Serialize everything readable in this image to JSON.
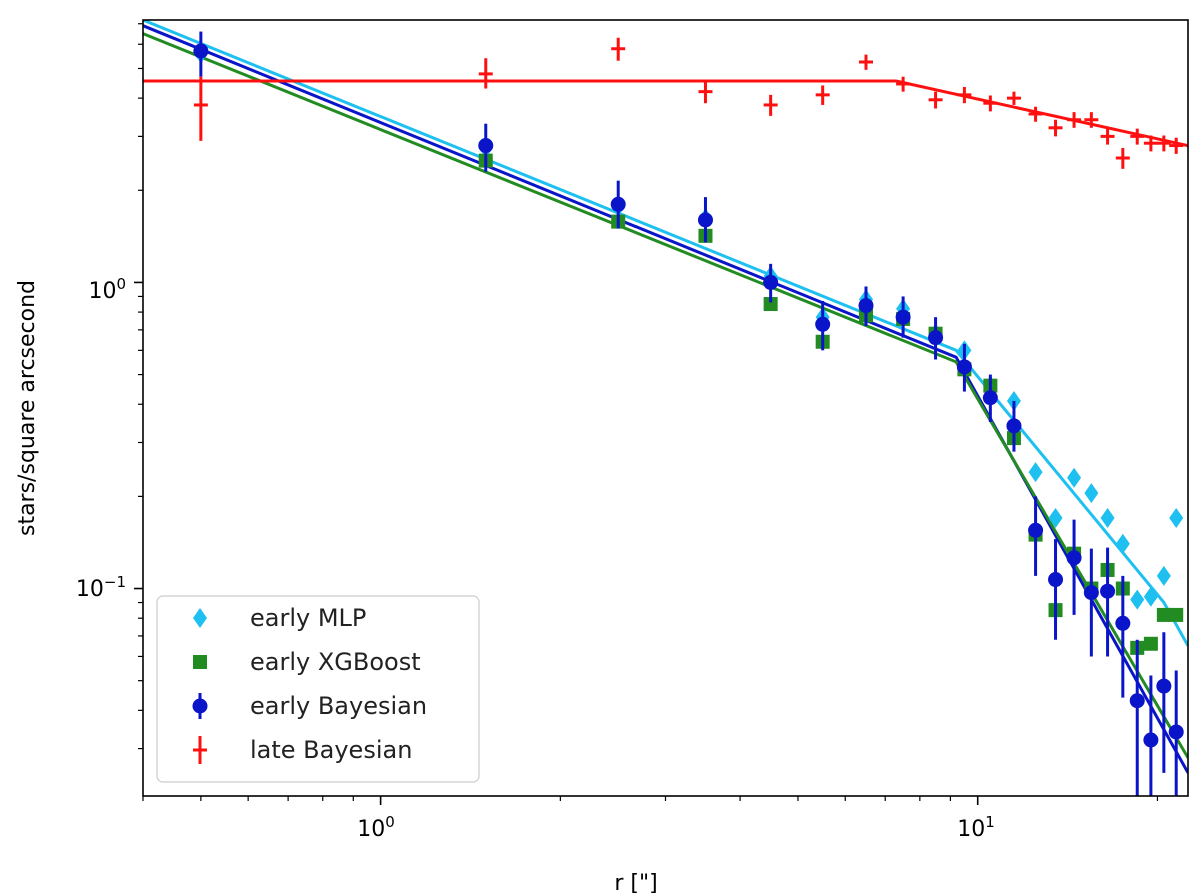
{
  "chart_data": {
    "type": "scatter",
    "xscale": "log",
    "yscale": "log",
    "xlim": [
      0.4,
      22.5
    ],
    "ylim": [
      0.021,
      7.2
    ],
    "xlabel": "r [\"]",
    "ylabel": "stars/square arcsecond",
    "xticks": [
      {
        "value": 1,
        "base": "10",
        "exp": "0"
      },
      {
        "value": 10,
        "base": "10",
        "exp": "1"
      }
    ],
    "yticks": [
      {
        "value": 1,
        "base": "10",
        "exp": "0"
      },
      {
        "value": 0.1,
        "base": "10",
        "exp": "−1"
      }
    ],
    "grid": false,
    "legend_position": "lower-left",
    "series": [
      {
        "name": "early MLP",
        "color": "#1ec0f0",
        "marker": "diamond",
        "points": [
          {
            "x": 0.5,
            "y": 5.6
          },
          {
            "x": 1.5,
            "y": 2.75
          },
          {
            "x": 2.5,
            "y": 1.77
          },
          {
            "x": 3.5,
            "y": 1.62
          },
          {
            "x": 4.5,
            "y": 1.05
          },
          {
            "x": 5.5,
            "y": 0.77
          },
          {
            "x": 6.5,
            "y": 0.88
          },
          {
            "x": 7.5,
            "y": 0.82
          },
          {
            "x": 8.5,
            "y": 0.68
          },
          {
            "x": 9.5,
            "y": 0.6
          },
          {
            "x": 10.5,
            "y": 0.46
          },
          {
            "x": 11.5,
            "y": 0.41
          },
          {
            "x": 12.5,
            "y": 0.24
          },
          {
            "x": 13.5,
            "y": 0.17
          },
          {
            "x": 14.5,
            "y": 0.23
          },
          {
            "x": 15.5,
            "y": 0.205
          },
          {
            "x": 16.5,
            "y": 0.17
          },
          {
            "x": 17.5,
            "y": 0.14
          },
          {
            "x": 18.5,
            "y": 0.092
          },
          {
            "x": 19.5,
            "y": 0.094
          },
          {
            "x": 20.5,
            "y": 0.11
          },
          {
            "x": 21.5,
            "y": 0.17
          }
        ]
      },
      {
        "name": "early XGBoost",
        "color": "#228b22",
        "marker": "square",
        "points": [
          {
            "x": 1.5,
            "y": 2.5
          },
          {
            "x": 2.5,
            "y": 1.58
          },
          {
            "x": 3.5,
            "y": 1.42
          },
          {
            "x": 4.5,
            "y": 0.85
          },
          {
            "x": 5.5,
            "y": 0.64
          },
          {
            "x": 6.5,
            "y": 0.78
          },
          {
            "x": 7.5,
            "y": 0.76
          },
          {
            "x": 8.5,
            "y": 0.68
          },
          {
            "x": 9.5,
            "y": 0.52
          },
          {
            "x": 10.5,
            "y": 0.46
          },
          {
            "x": 11.5,
            "y": 0.31
          },
          {
            "x": 12.5,
            "y": 0.15
          },
          {
            "x": 13.5,
            "y": 0.085
          },
          {
            "x": 14.5,
            "y": 0.13
          },
          {
            "x": 15.5,
            "y": 0.1
          },
          {
            "x": 16.5,
            "y": 0.115
          },
          {
            "x": 17.5,
            "y": 0.1
          },
          {
            "x": 18.5,
            "y": 0.064
          },
          {
            "x": 19.5,
            "y": 0.066
          },
          {
            "x": 20.5,
            "y": 0.082
          },
          {
            "x": 21.5,
            "y": 0.082
          }
        ]
      },
      {
        "name": "early Bayesian",
        "color": "#0a14c8",
        "marker": "circle",
        "errorbars": true,
        "points": [
          {
            "x": 0.5,
            "y": 5.7,
            "lo": 4.7,
            "hi": 6.6
          },
          {
            "x": 1.5,
            "y": 2.8,
            "lo": 2.3,
            "hi": 3.3
          },
          {
            "x": 2.5,
            "y": 1.8,
            "lo": 1.5,
            "hi": 2.15
          },
          {
            "x": 3.5,
            "y": 1.6,
            "lo": 1.35,
            "hi": 1.9
          },
          {
            "x": 4.5,
            "y": 1.0,
            "lo": 0.86,
            "hi": 1.15
          },
          {
            "x": 5.5,
            "y": 0.73,
            "lo": 0.6,
            "hi": 0.87
          },
          {
            "x": 6.5,
            "y": 0.84,
            "lo": 0.72,
            "hi": 0.97
          },
          {
            "x": 7.5,
            "y": 0.77,
            "lo": 0.66,
            "hi": 0.9
          },
          {
            "x": 8.5,
            "y": 0.66,
            "lo": 0.56,
            "hi": 0.77
          },
          {
            "x": 9.5,
            "y": 0.53,
            "lo": 0.44,
            "hi": 0.63
          },
          {
            "x": 10.5,
            "y": 0.42,
            "lo": 0.35,
            "hi": 0.5
          },
          {
            "x": 11.5,
            "y": 0.34,
            "lo": 0.28,
            "hi": 0.41
          },
          {
            "x": 12.5,
            "y": 0.155,
            "lo": 0.11,
            "hi": 0.2
          },
          {
            "x": 13.5,
            "y": 0.107,
            "lo": 0.068,
            "hi": 0.145
          },
          {
            "x": 14.5,
            "y": 0.126,
            "lo": 0.082,
            "hi": 0.168
          },
          {
            "x": 15.5,
            "y": 0.097,
            "lo": 0.06,
            "hi": 0.135
          },
          {
            "x": 16.5,
            "y": 0.098,
            "lo": 0.06,
            "hi": 0.136
          },
          {
            "x": 17.5,
            "y": 0.077,
            "lo": 0.044,
            "hi": 0.11
          },
          {
            "x": 18.5,
            "y": 0.043,
            "lo": 0.02,
            "hi": 0.068
          },
          {
            "x": 19.5,
            "y": 0.032,
            "lo": 0.015,
            "hi": 0.052
          },
          {
            "x": 20.5,
            "y": 0.048,
            "lo": 0.025,
            "hi": 0.072
          },
          {
            "x": 21.5,
            "y": 0.034,
            "lo": 0.016,
            "hi": 0.054
          }
        ]
      },
      {
        "name": "late Bayesian",
        "color": "#ff1010",
        "marker": "hline",
        "errorbars": true,
        "points": [
          {
            "x": 0.5,
            "y": 3.8,
            "lo": 2.9,
            "hi": 4.7
          },
          {
            "x": 1.5,
            "y": 4.8,
            "lo": 4.3,
            "hi": 5.4
          },
          {
            "x": 2.5,
            "y": 5.8,
            "lo": 5.3,
            "hi": 6.3
          },
          {
            "x": 3.5,
            "y": 4.2,
            "lo": 3.85,
            "hi": 4.55
          },
          {
            "x": 4.5,
            "y": 3.8,
            "lo": 3.5,
            "hi": 4.1
          },
          {
            "x": 5.5,
            "y": 4.1,
            "lo": 3.8,
            "hi": 4.4
          },
          {
            "x": 6.5,
            "y": 5.25,
            "lo": 4.95,
            "hi": 5.55
          },
          {
            "x": 7.5,
            "y": 4.45,
            "lo": 4.2,
            "hi": 4.7
          },
          {
            "x": 8.5,
            "y": 3.95,
            "lo": 3.7,
            "hi": 4.2
          },
          {
            "x": 9.5,
            "y": 4.1,
            "lo": 3.85,
            "hi": 4.35
          },
          {
            "x": 10.5,
            "y": 3.85,
            "lo": 3.62,
            "hi": 4.08
          },
          {
            "x": 11.5,
            "y": 4.0,
            "lo": 3.8,
            "hi": 4.2
          },
          {
            "x": 12.5,
            "y": 3.55,
            "lo": 3.35,
            "hi": 3.75
          },
          {
            "x": 13.5,
            "y": 3.2,
            "lo": 3.0,
            "hi": 3.4
          },
          {
            "x": 14.5,
            "y": 3.4,
            "lo": 3.2,
            "hi": 3.6
          },
          {
            "x": 15.5,
            "y": 3.4,
            "lo": 3.2,
            "hi": 3.6
          },
          {
            "x": 16.5,
            "y": 3.0,
            "lo": 2.82,
            "hi": 3.18
          },
          {
            "x": 17.5,
            "y": 2.55,
            "lo": 2.35,
            "hi": 2.75
          },
          {
            "x": 18.5,
            "y": 3.0,
            "lo": 2.82,
            "hi": 3.18
          },
          {
            "x": 19.5,
            "y": 2.85,
            "lo": 2.68,
            "hi": 3.02
          },
          {
            "x": 20.5,
            "y": 2.85,
            "lo": 2.68,
            "hi": 3.02
          },
          {
            "x": 21.5,
            "y": 2.8,
            "lo": 2.63,
            "hi": 2.97
          }
        ]
      }
    ],
    "fits": [
      {
        "series": "early MLP",
        "color": "#1ec0f0",
        "points": [
          [
            0.4,
            7.2
          ],
          [
            9.2,
            0.6
          ],
          [
            20.5,
            0.09
          ],
          [
            22.5,
            0.065
          ]
        ]
      },
      {
        "series": "early Bayesian",
        "color": "#0a14c8",
        "points": [
          [
            0.4,
            6.9
          ],
          [
            9.2,
            0.57
          ],
          [
            22.5,
            0.025
          ]
        ]
      },
      {
        "series": "early XGBoost",
        "color": "#228b22",
        "points": [
          [
            0.4,
            6.5
          ],
          [
            9.2,
            0.55
          ],
          [
            22.5,
            0.028
          ]
        ]
      },
      {
        "series": "late Bayesian",
        "color": "#ff1010",
        "points": [
          [
            0.4,
            4.55
          ],
          [
            7.3,
            4.55
          ],
          [
            22.5,
            2.8
          ]
        ]
      }
    ]
  }
}
